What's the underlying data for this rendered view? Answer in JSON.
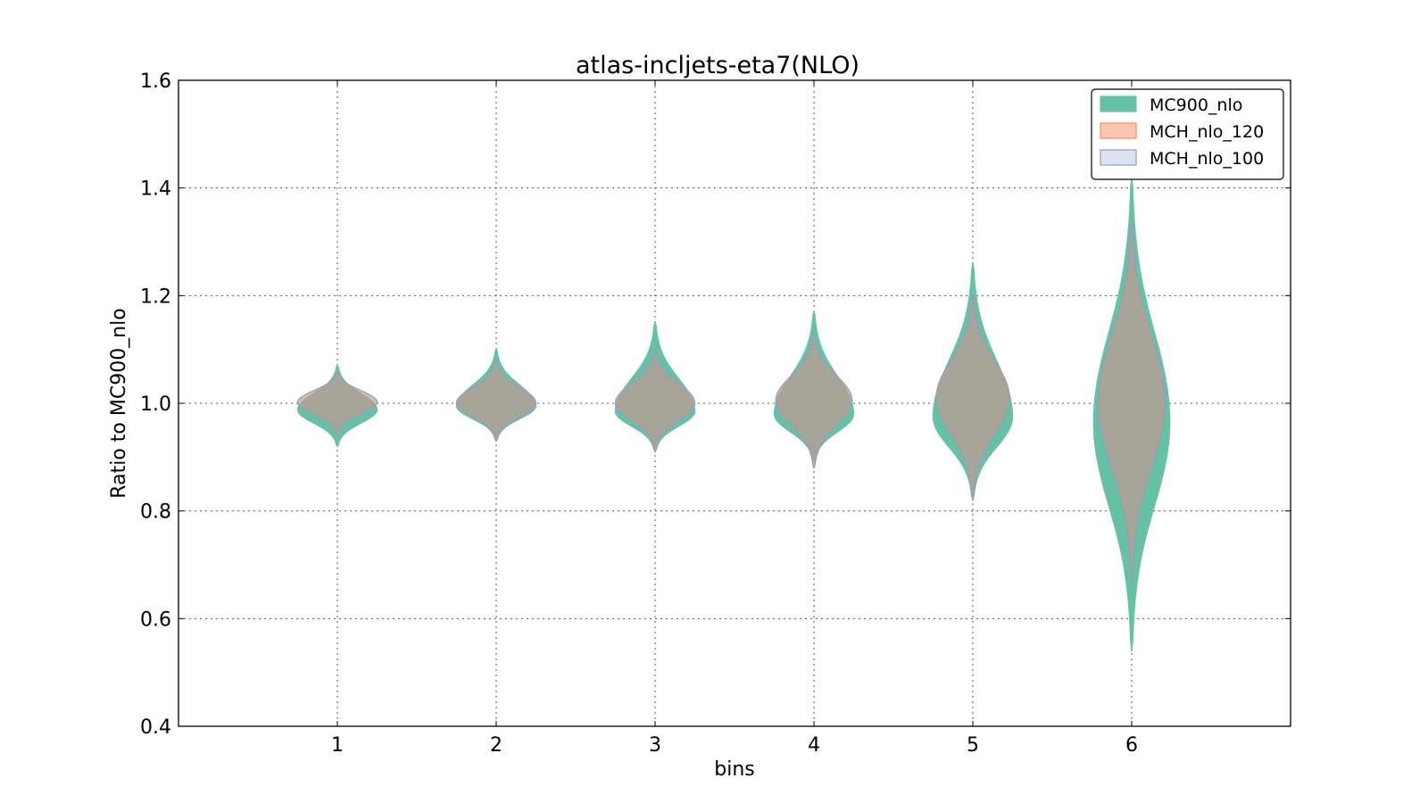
{
  "chart_data": {
    "type": "violin",
    "title": "atlas-incljets-eta7(NLO)",
    "xlabel": "bins",
    "ylabel": "Ratio to MC900_nlo",
    "xlim": [
      0,
      7
    ],
    "ylim": [
      0.4,
      1.6
    ],
    "x_ticks": [
      "1",
      "2",
      "3",
      "4",
      "5",
      "6"
    ],
    "y_ticks": [
      "0.4",
      "0.6",
      "0.8",
      "1.0",
      "1.2",
      "1.4",
      "1.6"
    ],
    "grid": true,
    "legend_position": "top-right",
    "series": [
      {
        "name": "MC900_nlo",
        "color": "#66c2a5",
        "fill_opacity": 1.0,
        "edge_color": "#66c2a5",
        "violins": [
          {
            "bin": 1,
            "min": 0.92,
            "max": 1.07,
            "peak": 0.988,
            "max_half_width": 0.25
          },
          {
            "bin": 2,
            "min": 0.93,
            "max": 1.1,
            "peak": 0.995,
            "max_half_width": 0.25
          },
          {
            "bin": 3,
            "min": 0.91,
            "max": 1.15,
            "peak": 0.985,
            "max_half_width": 0.25
          },
          {
            "bin": 4,
            "min": 0.89,
            "max": 1.17,
            "peak": 0.98,
            "max_half_width": 0.25
          },
          {
            "bin": 5,
            "min": 0.82,
            "max": 1.26,
            "peak": 0.975,
            "max_half_width": 0.25
          },
          {
            "bin": 6,
            "min": 0.54,
            "max": 1.42,
            "peak": 0.965,
            "max_half_width": 0.24
          }
        ]
      },
      {
        "name": "MCH_nlo_120",
        "color": "#fc8d62",
        "fill_opacity": 0.5,
        "edge_color": "#fc8d62",
        "violins": [
          {
            "bin": 1,
            "min": 0.94,
            "max": 1.06,
            "peak": 1.002,
            "max_half_width": 0.25
          },
          {
            "bin": 2,
            "min": 0.93,
            "max": 1.08,
            "peak": 1.0,
            "max_half_width": 0.25
          },
          {
            "bin": 3,
            "min": 0.91,
            "max": 1.1,
            "peak": 1.0,
            "max_half_width": 0.25
          },
          {
            "bin": 4,
            "min": 0.88,
            "max": 1.13,
            "peak": 1.005,
            "max_half_width": 0.24
          },
          {
            "bin": 5,
            "min": 0.82,
            "max": 1.2,
            "peak": 1.01,
            "max_half_width": 0.23
          },
          {
            "bin": 6,
            "min": 0.67,
            "max": 1.33,
            "peak": 1.0,
            "max_half_width": 0.21
          }
        ]
      },
      {
        "name": "MCH_nlo_100",
        "color": "#8da0cb",
        "fill_opacity": 0.3,
        "edge_color": "#8da0cb",
        "violins": [
          {
            "bin": 1,
            "min": 0.94,
            "max": 1.06,
            "peak": 1.002,
            "max_half_width": 0.25
          },
          {
            "bin": 2,
            "min": 0.93,
            "max": 1.08,
            "peak": 1.0,
            "max_half_width": 0.25
          },
          {
            "bin": 3,
            "min": 0.91,
            "max": 1.1,
            "peak": 1.0,
            "max_half_width": 0.25
          },
          {
            "bin": 4,
            "min": 0.88,
            "max": 1.13,
            "peak": 1.005,
            "max_half_width": 0.24
          },
          {
            "bin": 5,
            "min": 0.82,
            "max": 1.2,
            "peak": 1.01,
            "max_half_width": 0.23
          },
          {
            "bin": 6,
            "min": 0.67,
            "max": 1.34,
            "peak": 1.0,
            "max_half_width": 0.21
          }
        ]
      }
    ]
  }
}
